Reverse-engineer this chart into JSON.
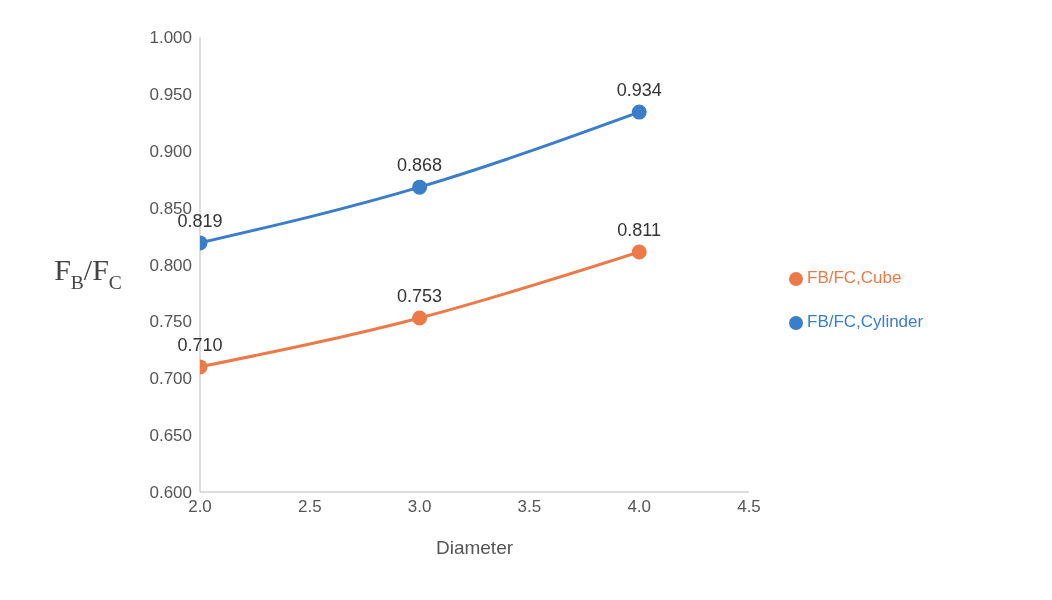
{
  "chart_data": {
    "type": "line",
    "xlabel": "Diameter",
    "ylabel": "F$_{B}$/F$_{C}$",
    "x": [
      2,
      3,
      4
    ],
    "series": [
      {
        "name": "FB/FC,Cylinder",
        "color": "#3a7dc9",
        "values": [
          0.819,
          0.868,
          0.934
        ],
        "value_labels": [
          "0.819",
          "0.868",
          "0.934"
        ]
      },
      {
        "name": "FB/FC,Cube",
        "color": "#ec7a48",
        "values": [
          0.71,
          0.753,
          0.811
        ],
        "value_labels": [
          "0.710",
          "0.753",
          "0.811"
        ]
      }
    ],
    "xlim": [
      2,
      4.5
    ],
    "xticks": [
      {
        "value": 2,
        "label": "2.0"
      },
      {
        "value": 2.5,
        "label": "2.5"
      },
      {
        "value": 3,
        "label": "3.0"
      },
      {
        "value": 3.5,
        "label": "3.5"
      },
      {
        "value": 4,
        "label": "4.0"
      },
      {
        "value": 4.5,
        "label": "4.5"
      }
    ],
    "ylim": [
      0.6,
      1
    ],
    "yticks": [
      {
        "value": 0.6,
        "label": "0.600"
      },
      {
        "value": 0.65,
        "label": "0.650"
      },
      {
        "value": 0.7,
        "label": "0.700"
      },
      {
        "value": 0.75,
        "label": "0.750"
      },
      {
        "value": 0.8,
        "label": "0.800"
      },
      {
        "value": 0.85,
        "label": "0.850"
      },
      {
        "value": 0.9,
        "label": "0.900"
      },
      {
        "value": 0.95,
        "label": "0.950"
      },
      {
        "value": 1,
        "label": "1.000"
      }
    ],
    "grid": false,
    "legend": "right",
    "marker": "circle",
    "line_style": "solid"
  }
}
